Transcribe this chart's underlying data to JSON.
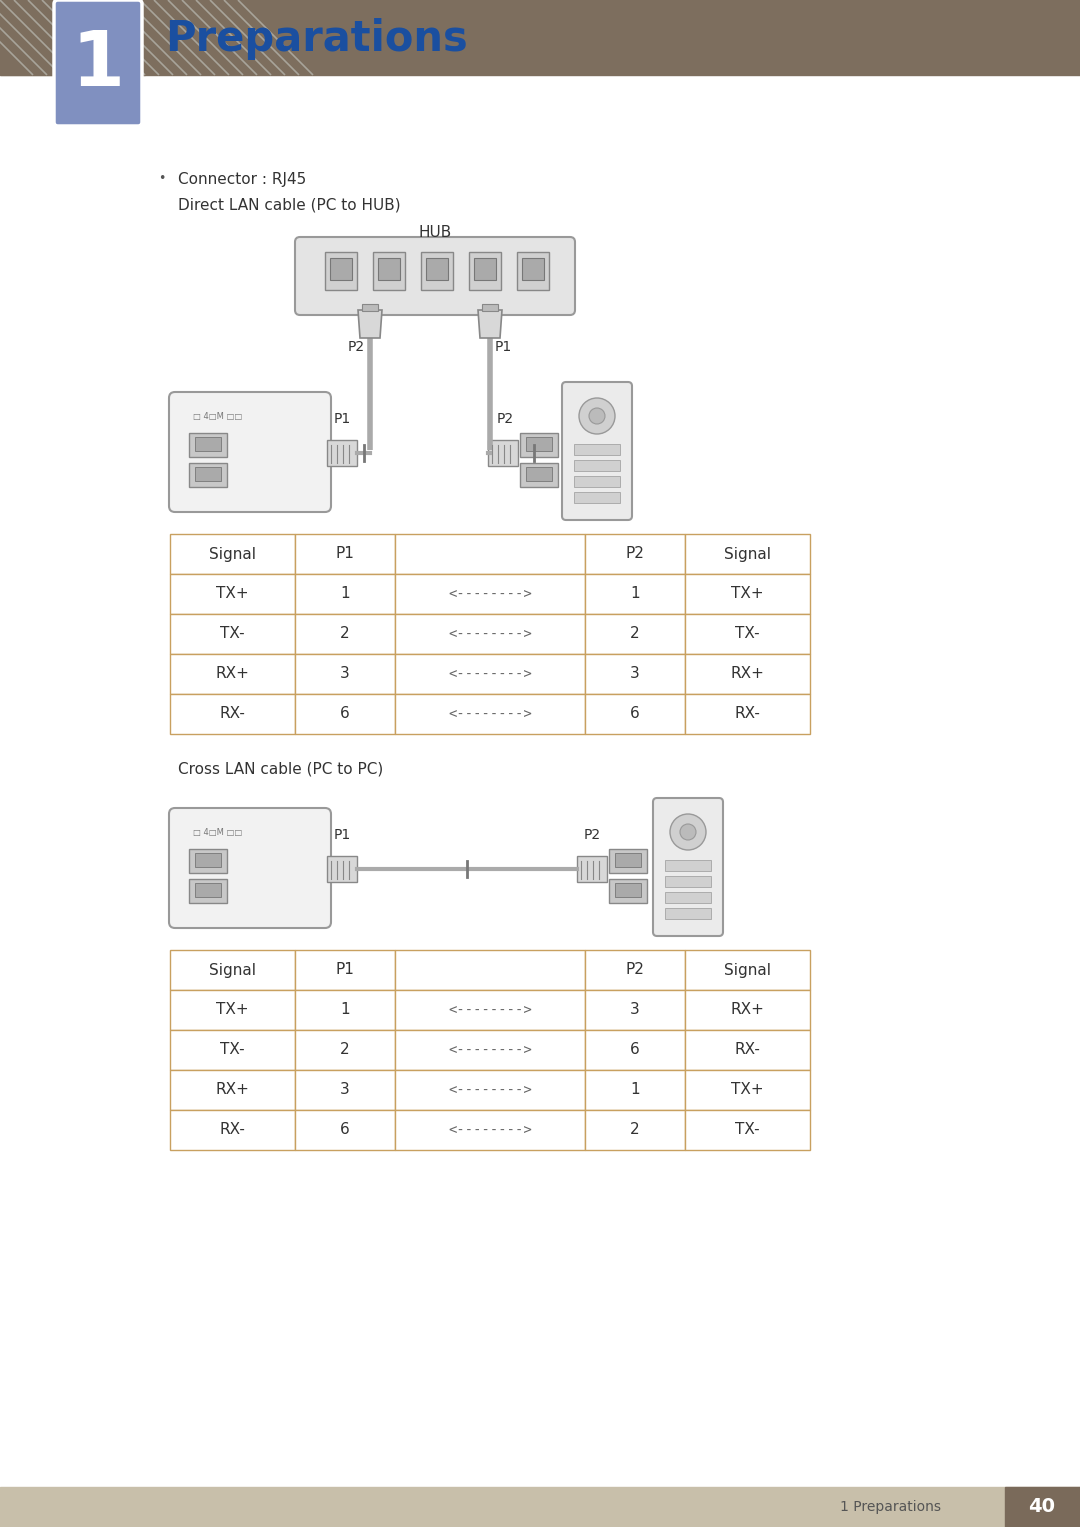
{
  "title": "Preparations",
  "chapter_num": "1",
  "header_color": "#7d6e5e",
  "chapter_bg_color": "#8090c0",
  "title_text_color": "#1a4fa0",
  "page_bg": "#ffffff",
  "connector_label": "Connector : RJ45",
  "direct_label": "Direct LAN cable (PC to HUB)",
  "cross_label": "Cross LAN cable (PC to PC)",
  "hub_label": "HUB",
  "table_border_color": "#c8a060",
  "direct_table": {
    "headers": [
      "Signal",
      "P1",
      "",
      "P2",
      "Signal"
    ],
    "rows": [
      [
        "TX+",
        "1",
        "<-------->",
        "1",
        "TX+"
      ],
      [
        "TX-",
        "2",
        "<-------->",
        "2",
        "TX-"
      ],
      [
        "RX+",
        "3",
        "<-------->",
        "3",
        "RX+"
      ],
      [
        "RX-",
        "6",
        "<-------->",
        "6",
        "RX-"
      ]
    ]
  },
  "cross_table": {
    "headers": [
      "Signal",
      "P1",
      "",
      "P2",
      "Signal"
    ],
    "rows": [
      [
        "TX+",
        "1",
        "<-------->",
        "3",
        "RX+"
      ],
      [
        "TX-",
        "2",
        "<-------->",
        "6",
        "RX-"
      ],
      [
        "RX+",
        "3",
        "<-------->",
        "1",
        "TX+"
      ],
      [
        "RX-",
        "6",
        "<-------->",
        "2",
        "TX-"
      ]
    ]
  },
  "footer_text": "1 Preparations",
  "footer_page": "40",
  "footer_bg": "#c8bfaa"
}
